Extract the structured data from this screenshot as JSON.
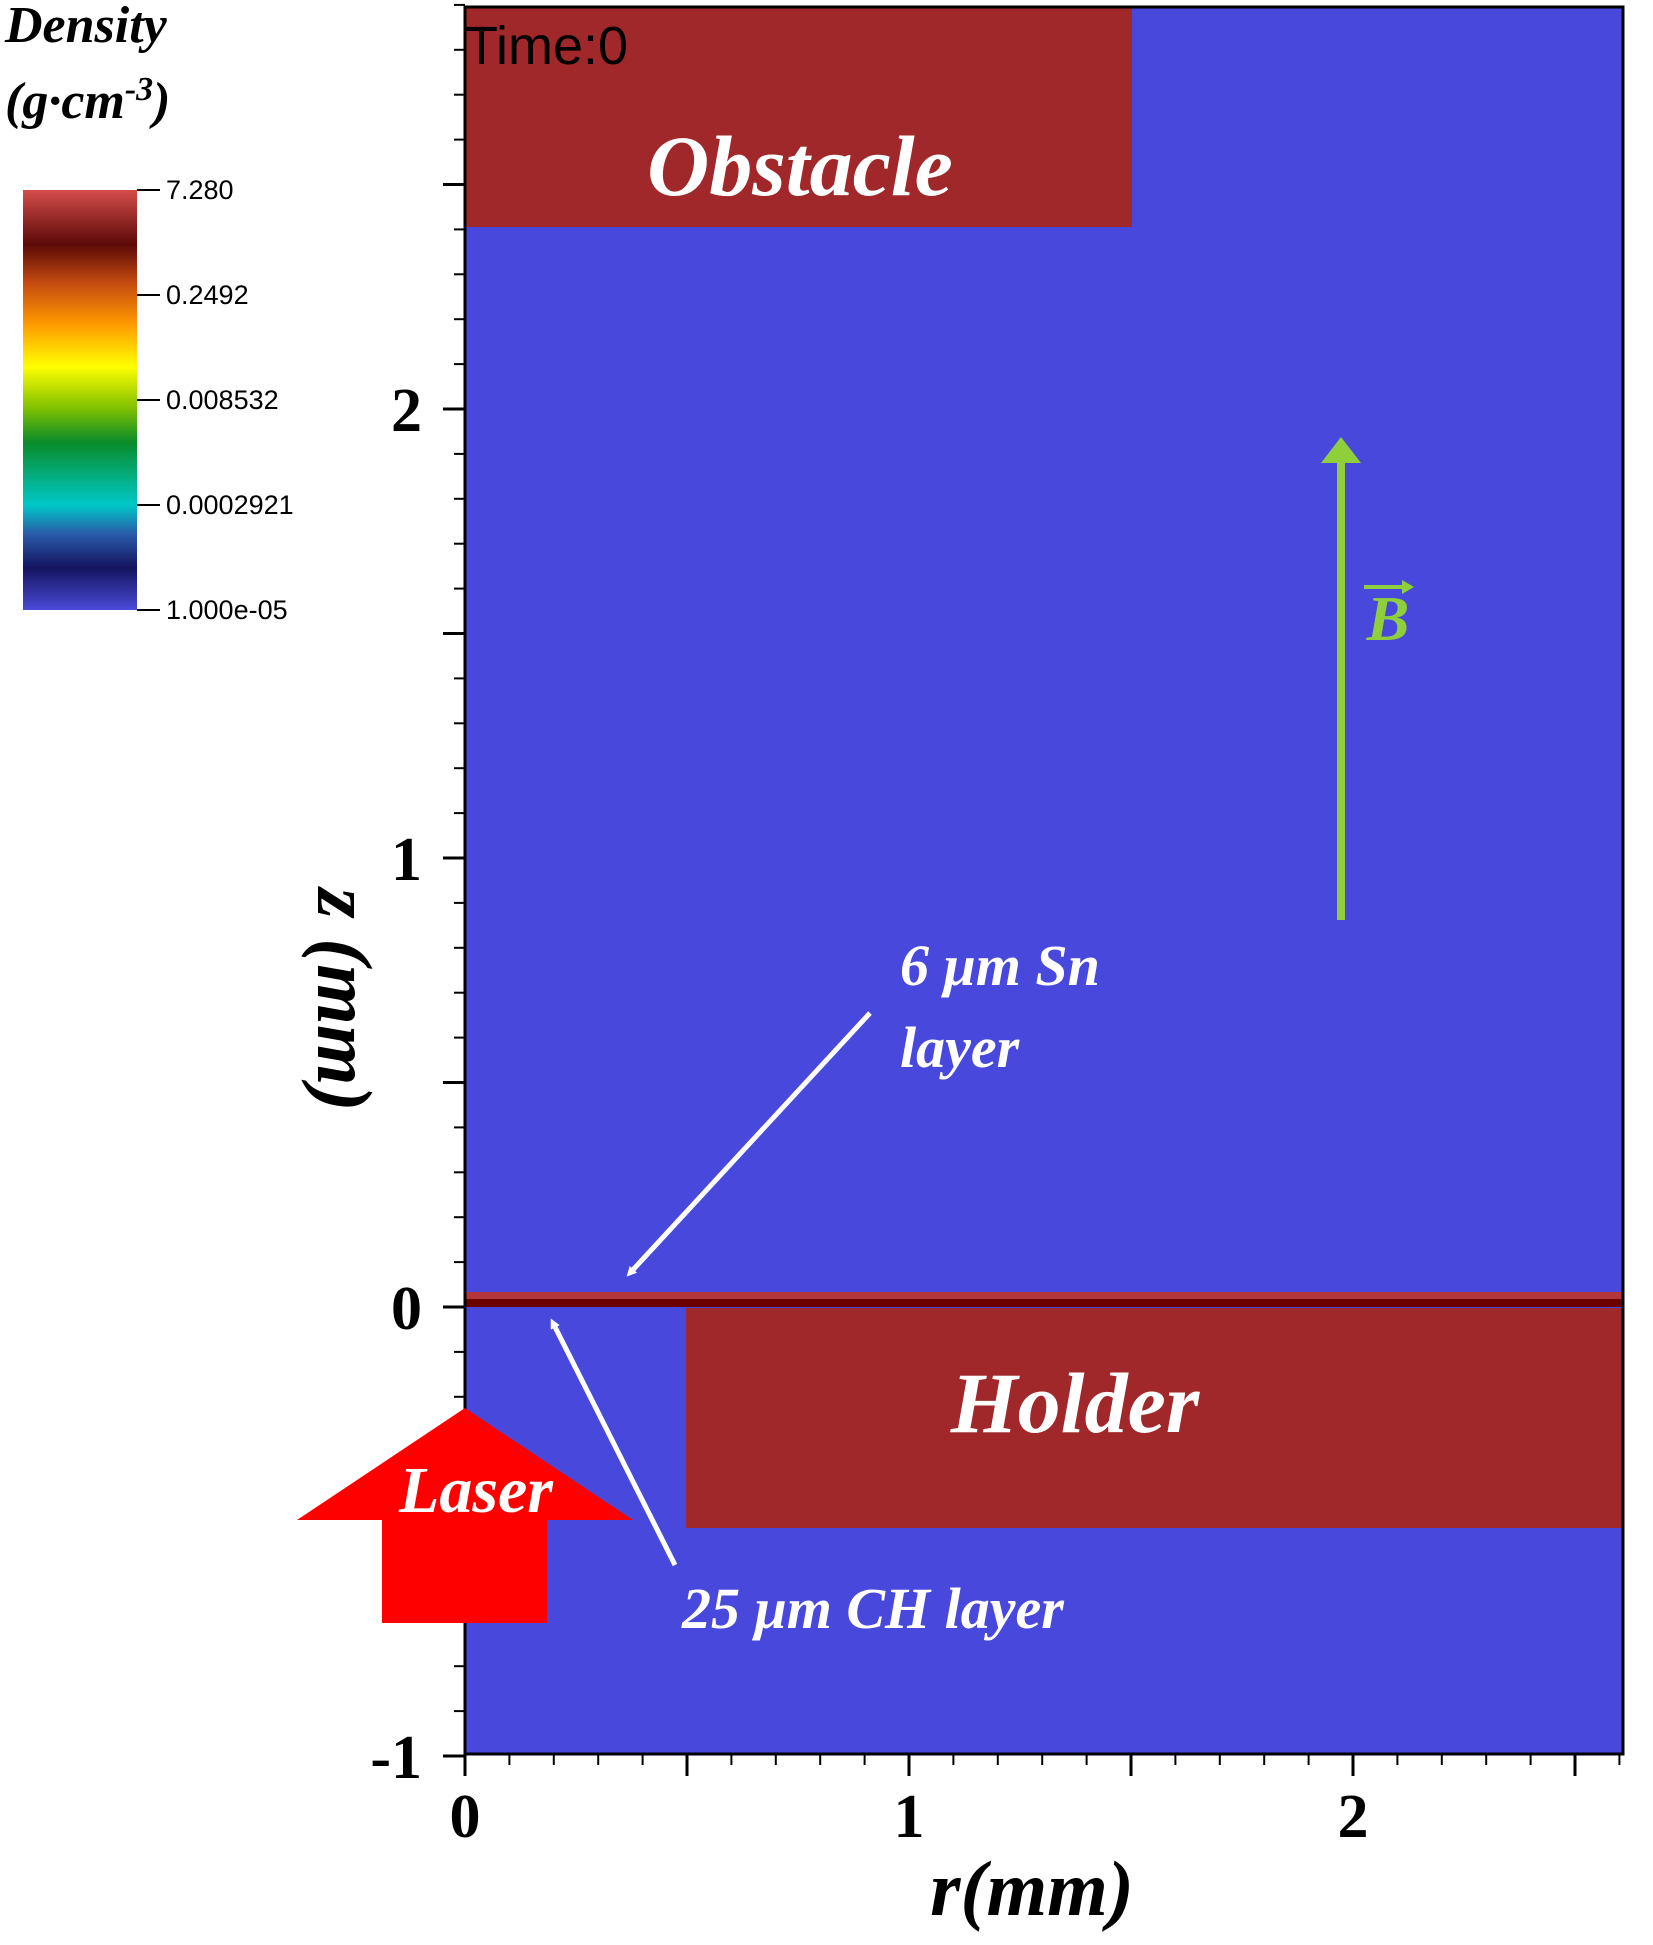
{
  "colorbar": {
    "title_line1": "Density",
    "title_line2_base": "(g·cm",
    "title_line2_exp": "-3",
    "title_line2_end": ")",
    "tick_labels": [
      "7.280",
      "0.2492",
      "0.008532",
      "0.0002921",
      "1.000e-05"
    ],
    "scale": "log",
    "colormap": [
      "#d44d4a",
      "#5c0a08",
      "#c44a10",
      "#ff9a00",
      "#ffff00",
      "#7fc000",
      "#0a8c2a",
      "#00c8c8",
      "#2a5aa8",
      "#141460",
      "#4a4ad8"
    ]
  },
  "plot": {
    "time_label": "Time:0",
    "background_color": "#4848dc",
    "solid_color": "#a0272a",
    "layer_color": "#6a0000",
    "x_axis_label": "r(mm)",
    "y_axis_label": "z (mm)",
    "x_ticks": [
      "0",
      "1",
      "2"
    ],
    "y_ticks": [
      "-1",
      "0",
      "1",
      "2"
    ],
    "x_range": [
      0,
      2.6
    ],
    "y_range": [
      -1,
      2.9
    ]
  },
  "annotations": {
    "obstacle": "Obstacle",
    "holder": "Holder",
    "sn_layer_line1": "6 μm Sn",
    "sn_layer_line2": "layer",
    "ch_layer": "25 μm CH layer",
    "laser": "Laser",
    "b_field": "B",
    "b_field_color": "#8fcf3c",
    "laser_color": "#ff0000"
  }
}
